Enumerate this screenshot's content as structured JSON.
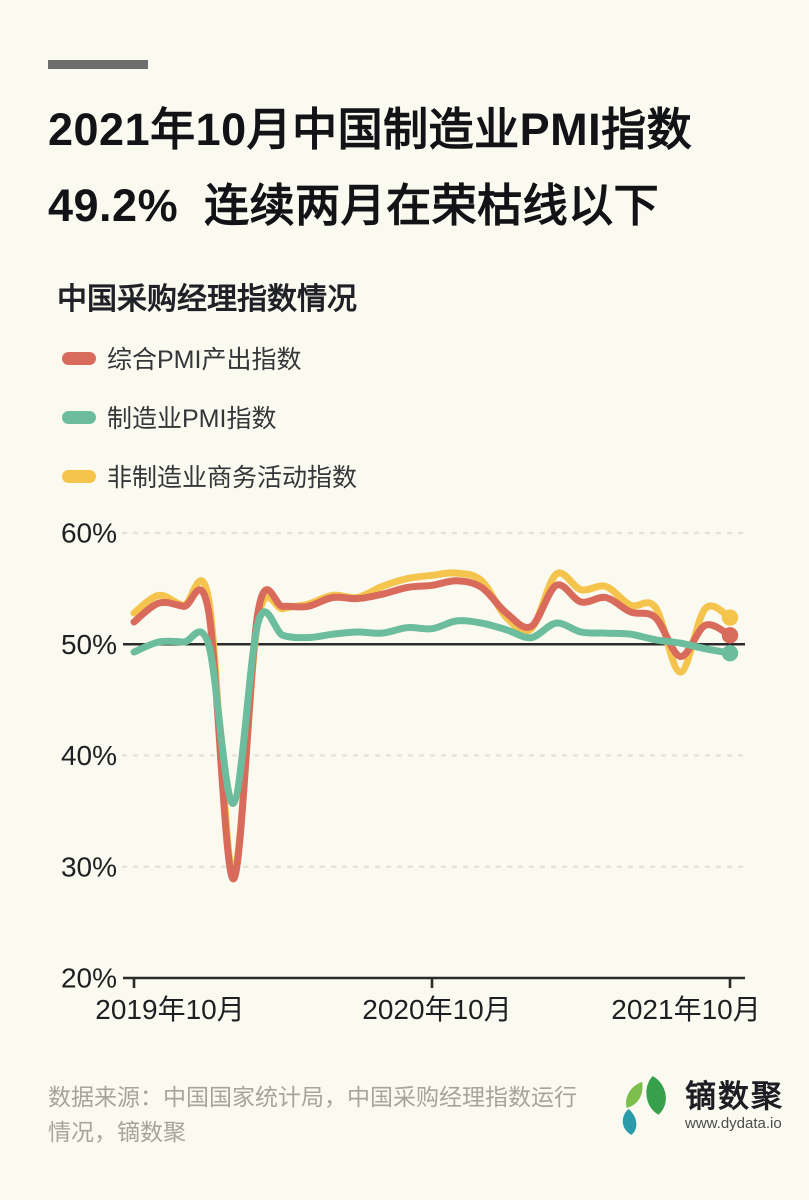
{
  "page": {
    "background_color": "#FBFAF0",
    "accent_bar_color": "#6E6E6E"
  },
  "header": {
    "title_line1": "2021年10月中国制造业PMI指数",
    "title_line2": "49.2%  连续两月在荣枯线以下"
  },
  "chart_data": {
    "type": "line",
    "title": "中国采购经理指数情况",
    "xlabel": "",
    "ylabel": "",
    "x": [
      "2019-10",
      "2019-11",
      "2019-12",
      "2020-01",
      "2020-02",
      "2020-03",
      "2020-04",
      "2020-05",
      "2020-06",
      "2020-07",
      "2020-08",
      "2020-09",
      "2020-10",
      "2020-11",
      "2020-12",
      "2021-01",
      "2021-02",
      "2021-03",
      "2021-04",
      "2021-05",
      "2021-06",
      "2021-07",
      "2021-08",
      "2021-09",
      "2021-10"
    ],
    "x_tick_labels": [
      "2019年10月",
      "2020年10月",
      "2021年10月"
    ],
    "x_tick_month_index": [
      0,
      12,
      24
    ],
    "y_ticks": [
      20,
      30,
      40,
      50,
      60
    ],
    "y_tick_labels": [
      "20%",
      "30%",
      "40%",
      "50%",
      "60%"
    ],
    "ylim": [
      20,
      60
    ],
    "reference_line": 50,
    "grid": "dotted horizontal gridlines at 30/40/60, solid black line at 50, solid axis at 20",
    "legend_position": "top-left, vertical",
    "series": [
      {
        "name": "综合PMI产出指数",
        "color": "#D96B5C",
        "values": [
          52.0,
          53.7,
          53.4,
          53.0,
          28.9,
          53.0,
          53.4,
          53.4,
          54.2,
          54.1,
          54.5,
          55.1,
          55.3,
          55.7,
          55.1,
          52.8,
          51.6,
          55.3,
          53.8,
          54.2,
          52.9,
          52.4,
          48.9,
          51.7,
          50.8
        ]
      },
      {
        "name": "制造业PMI指数",
        "color": "#6CBD9E",
        "values": [
          49.3,
          50.2,
          50.2,
          50.0,
          35.7,
          52.0,
          50.8,
          50.6,
          50.9,
          51.1,
          51.0,
          51.5,
          51.4,
          52.1,
          51.9,
          51.3,
          50.6,
          51.9,
          51.1,
          51.0,
          50.9,
          50.4,
          50.1,
          49.6,
          49.2
        ]
      },
      {
        "name": "非制造业商务活动指数",
        "color": "#F4C44C",
        "values": [
          52.8,
          54.4,
          53.5,
          54.1,
          29.6,
          52.3,
          53.2,
          53.6,
          54.4,
          54.2,
          55.2,
          55.9,
          56.2,
          56.4,
          55.7,
          52.4,
          51.4,
          56.3,
          54.9,
          55.2,
          53.5,
          53.3,
          47.5,
          53.2,
          52.4
        ]
      }
    ]
  },
  "footer": {
    "source": "数据来源：中国国家统计局，中国采购经理指数运行情况，镝数聚",
    "brand": "镝数聚",
    "website": "www.dydata.io",
    "logo_colors": {
      "leaf_green": "#37A04A",
      "leaf_light_green": "#7CBF4D",
      "leaf_teal": "#2B9BAA"
    }
  }
}
